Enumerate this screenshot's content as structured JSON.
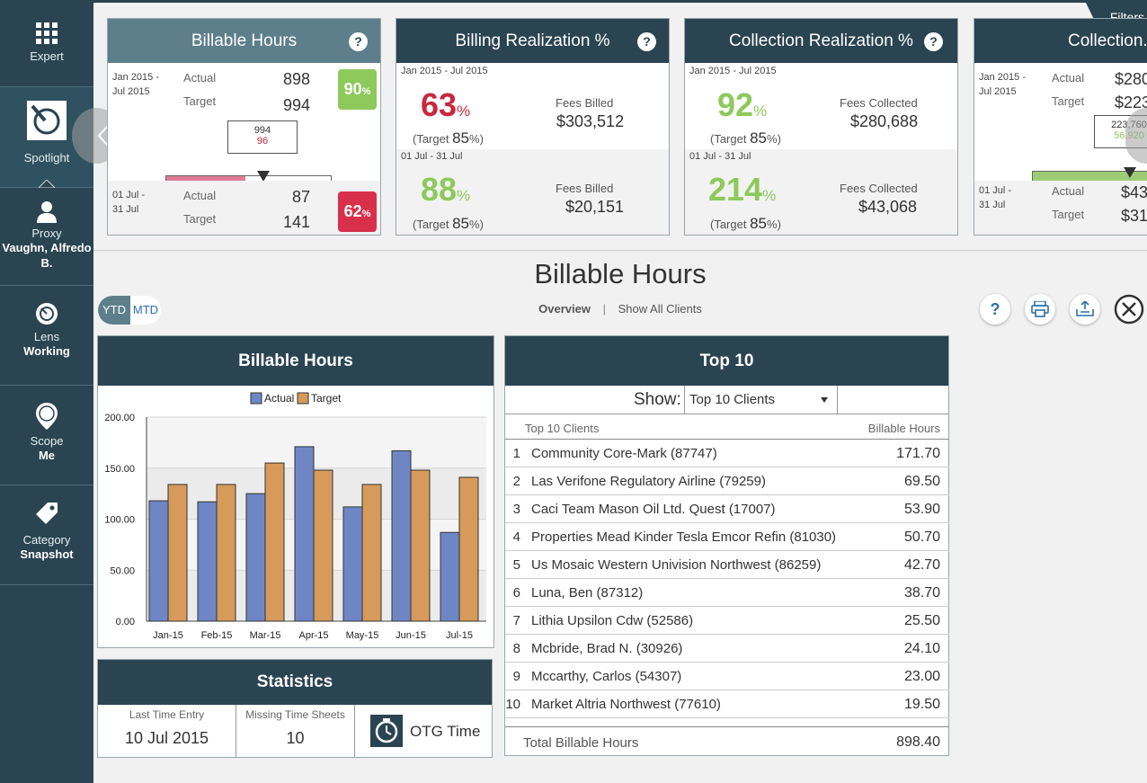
{
  "sidebar": {
    "items": [
      {
        "label": "Expert",
        "value": ""
      },
      {
        "label": "Spotlight",
        "value": ""
      },
      {
        "label": "Proxy",
        "value": "Vaughn, Alfredo B."
      },
      {
        "label": "Lens",
        "value": "Working"
      },
      {
        "label": "Scope",
        "value": "Me"
      },
      {
        "label": "Category",
        "value": "Snapshot"
      }
    ]
  },
  "filters_label": "Filters",
  "cards": {
    "billable": {
      "title": "Billable Hours",
      "help": "?",
      "ytd_period": "Jan 2015 - Jul 2015",
      "actual_label": "Actual",
      "target_label": "Target",
      "ytd_actual": "898",
      "ytd_target": "994",
      "ytd_pct": "90",
      "pct_sign": "%",
      "gauge_top": "994",
      "gauge_bottom": "96",
      "gauge_fill": 0.48,
      "mtd_period": "01 Jul - 31 Jul",
      "mtd_actual": "87",
      "mtd_target": "141",
      "mtd_pct": "62"
    },
    "billing": {
      "title": "Billing Realization %",
      "help": "?",
      "ytd_period": "Jan 2015 - Jul 2015",
      "ytd_value": "63",
      "ytd_target": "85",
      "fees_label": "Fees Billed",
      "ytd_fees": "$303,512",
      "mtd_period": "01 Jul - 31 Jul",
      "mtd_value": "88",
      "mtd_target": "85",
      "mtd_fees": "$20,151",
      "target_prefix": "(Target",
      "pct_close": "%)"
    },
    "collection": {
      "title": "Collection Realization %",
      "help": "?",
      "ytd_period": "Jan 2015 - Jul 2015",
      "ytd_value": "92",
      "ytd_target": "85",
      "fees_label": "Fees Collected",
      "ytd_fees": "$280,688",
      "mtd_period": "01 Jul - 31 Jul",
      "mtd_value": "214",
      "mtd_target": "85",
      "mtd_fees": "$43,068"
    },
    "collection2": {
      "title": "Collection...",
      "ytd_period": "Jan 2015 - Jul 2015",
      "ytd_actual": "$280",
      "ytd_target": "$223",
      "gauge_top": "223,760",
      "gauge_bottom": "56,920",
      "mtd_period": "01 Jul - 31 Jul",
      "mtd_actual": "$43",
      "mtd_target": "$31"
    }
  },
  "main": {
    "title": "Billable Hours",
    "toggle": {
      "ytd": "YTD",
      "mtd": "MTD"
    },
    "nav": {
      "overview": "Overview",
      "sep": "|",
      "all_clients": "Show All Clients"
    },
    "help": "?"
  },
  "chart_panel": {
    "title": "Billable Hours"
  },
  "chart_data": {
    "type": "bar",
    "categories": [
      "Jan-15",
      "Feb-15",
      "Mar-15",
      "Apr-15",
      "May-15",
      "Jun-15",
      "Jul-15"
    ],
    "series": [
      {
        "name": "Actual",
        "color": "#6f86c5",
        "values": [
          118,
          117,
          125,
          171,
          112,
          167,
          87
        ]
      },
      {
        "name": "Target",
        "color": "#d69a5b",
        "values": [
          134,
          134,
          155,
          148,
          134,
          148,
          141
        ]
      }
    ],
    "ylim": [
      0,
      200
    ],
    "yticks": [
      "0.00",
      "50.00",
      "100.00",
      "150.00",
      "200.00"
    ],
    "legend": "top-center",
    "grid": true
  },
  "top10": {
    "title": "Top 10",
    "show_label": "Show:",
    "selected": "Top 10 Clients",
    "col_client": "Top 10 Clients",
    "col_hours": "Billable Hours",
    "rows": [
      {
        "rank": "1",
        "name": "Community Core-Mark (87747)",
        "hours": "171.70"
      },
      {
        "rank": "2",
        "name": "Las Verifone Regulatory Airline (79259)",
        "hours": "69.50"
      },
      {
        "rank": "3",
        "name": "Caci Team Mason Oil Ltd. Quest (17007)",
        "hours": "53.90"
      },
      {
        "rank": "4",
        "name": "Properties Mead Kinder Tesla Emcor Refin (81030)",
        "hours": "50.70"
      },
      {
        "rank": "5",
        "name": "Us Mosaic Western Univision Northwest (86259)",
        "hours": "42.70"
      },
      {
        "rank": "6",
        "name": "Luna, Ben (87312)",
        "hours": "38.70"
      },
      {
        "rank": "7",
        "name": "Lithia Upsilon Cdw (52586)",
        "hours": "25.50"
      },
      {
        "rank": "8",
        "name": "Mcbride, Brad N. (30926)",
        "hours": "24.10"
      },
      {
        "rank": "9",
        "name": "Mccarthy, Carlos (54307)",
        "hours": "23.00"
      },
      {
        "rank": "10",
        "name": "Market Altria Northwest (77610)",
        "hours": "19.50"
      }
    ],
    "total_label": "Total Billable Hours",
    "total_value": "898.40"
  },
  "statistics": {
    "title": "Statistics",
    "last_entry_label": "Last Time Entry",
    "last_entry_value": "10 Jul 2015",
    "missing_label": "Missing Time Sheets",
    "missing_value": "10",
    "otg_label": "OTG Time"
  }
}
